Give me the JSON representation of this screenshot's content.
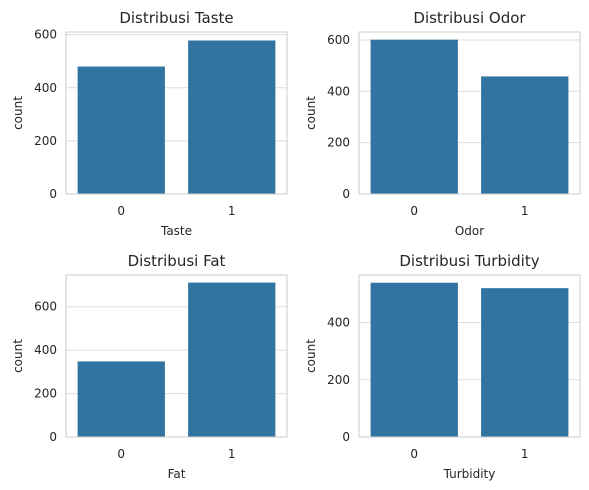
{
  "colors": {
    "bar": "#3274a1",
    "grid": "#dddddd",
    "frame": "#cccccc",
    "text": "#262626"
  },
  "chart_data": [
    {
      "type": "bar",
      "title": "Distribusi Taste",
      "xlabel": "Taste",
      "ylabel": "count",
      "categories": [
        "0",
        "1"
      ],
      "values": [
        480,
        578
      ],
      "ylim": [
        0,
        610
      ],
      "yticks": [
        0,
        200,
        400,
        600
      ],
      "grid": true
    },
    {
      "type": "bar",
      "title": "Distribusi Odor",
      "xlabel": "Odor",
      "ylabel": "count",
      "categories": [
        "0",
        "1"
      ],
      "values": [
        601,
        458
      ],
      "ylim": [
        0,
        631
      ],
      "yticks": [
        0,
        200,
        400,
        600
      ],
      "grid": true
    },
    {
      "type": "bar",
      "title": "Distribusi Fat",
      "xlabel": "Fat",
      "ylabel": "count",
      "categories": [
        "0",
        "1"
      ],
      "values": [
        348,
        711
      ],
      "ylim": [
        0,
        746
      ],
      "yticks": [
        0,
        200,
        400,
        600
      ],
      "grid": true
    },
    {
      "type": "bar",
      "title": "Distribusi Turbidity",
      "xlabel": "Turbidity",
      "ylabel": "count",
      "categories": [
        "0",
        "1"
      ],
      "values": [
        539,
        520
      ],
      "ylim": [
        0,
        566
      ],
      "yticks": [
        0,
        200,
        400
      ],
      "grid": true
    }
  ]
}
